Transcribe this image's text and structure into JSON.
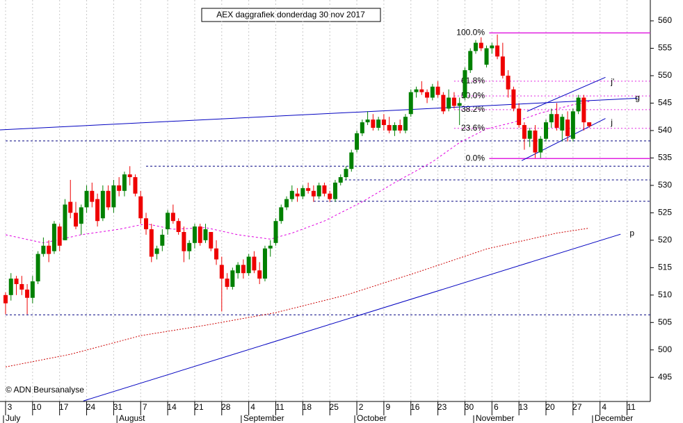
{
  "chart_data": {
    "type": "candlestick",
    "title": "AEX daggrafiek donderdag 30 nov 2017",
    "copyright": "© ADN Beursanalyse",
    "ylim": [
      490.6,
      563.8
    ],
    "yticks": [
      495,
      500,
      505,
      510,
      515,
      520,
      525,
      530,
      535,
      540,
      545,
      550,
      555,
      560
    ],
    "grid": true,
    "up_color": "#008000",
    "down_color": "#ee0000",
    "categories": [
      "3",
      null,
      null,
      null,
      null,
      "10",
      null,
      null,
      null,
      null,
      "17",
      null,
      null,
      null,
      null,
      "24",
      null,
      null,
      null,
      null,
      "31",
      null,
      null,
      null,
      null,
      "7",
      null,
      null,
      null,
      null,
      "14",
      null,
      null,
      null,
      null,
      "21",
      null,
      null,
      null,
      null,
      "28",
      null,
      null,
      null,
      null,
      "4",
      null,
      null,
      null,
      null,
      "11",
      null,
      null,
      null,
      null,
      "18",
      null,
      null,
      null,
      null,
      "25",
      null,
      null,
      null,
      null,
      "2",
      null,
      null,
      null,
      null,
      "9",
      null,
      null,
      null,
      null,
      "16",
      null,
      null,
      null,
      null,
      "23",
      null,
      null,
      null,
      null,
      "30",
      null,
      null,
      null,
      null,
      "6",
      null,
      null,
      null,
      null,
      "13",
      null,
      null,
      null,
      null,
      "20",
      null,
      null,
      null,
      null,
      "27",
      null,
      null,
      null,
      null,
      "4",
      null,
      null,
      null,
      null,
      "11",
      null,
      null,
      null
    ],
    "month_labels": [
      "July",
      null,
      null,
      null,
      null,
      null,
      null,
      null,
      null,
      null,
      null,
      null,
      null,
      null,
      null,
      null,
      null,
      null,
      null,
      null,
      null,
      "August",
      null,
      null,
      null,
      null,
      null,
      null,
      null,
      null,
      null,
      null,
      null,
      null,
      null,
      null,
      null,
      null,
      null,
      null,
      null,
      null,
      null,
      null,
      "September",
      null,
      null,
      null,
      null,
      null,
      null,
      null,
      null,
      null,
      null,
      null,
      null,
      null,
      null,
      null,
      null,
      null,
      null,
      null,
      null,
      "October",
      null,
      null,
      null,
      null,
      null,
      null,
      null,
      null,
      null,
      null,
      null,
      null,
      null,
      null,
      null,
      null,
      null,
      null,
      null,
      null,
      null,
      "November",
      null,
      null,
      null,
      null,
      null,
      null,
      null,
      null,
      null,
      null,
      null,
      null,
      null,
      null,
      null,
      null,
      null,
      null,
      null,
      null,
      null,
      "December",
      null,
      null,
      null,
      null,
      null,
      null,
      null,
      null,
      null
    ],
    "ohlc": [
      [
        510,
        510.5,
        506.5,
        508.5
      ],
      [
        510,
        514,
        509,
        513
      ],
      [
        513,
        513.5,
        510,
        512
      ],
      [
        512,
        513.5,
        510,
        511
      ],
      [
        511,
        512,
        506.5,
        509.5
      ],
      [
        509.5,
        513.5,
        508.5,
        512.5
      ],
      [
        512.5,
        518,
        512,
        517.5
      ],
      [
        517.5,
        520.5,
        517,
        519
      ],
      [
        519,
        520,
        516,
        517.5
      ],
      [
        518,
        523.5,
        517.5,
        523
      ],
      [
        522.5,
        523,
        518,
        519
      ],
      [
        520,
        527.5,
        520,
        526.5
      ],
      [
        527,
        531,
        524,
        525
      ],
      [
        525,
        527,
        522,
        522.5
      ],
      [
        523,
        526.5,
        521,
        526
      ],
      [
        526,
        530,
        525,
        529
      ],
      [
        529,
        530.5,
        526,
        527
      ],
      [
        527.5,
        528.5,
        522.5,
        523.5
      ],
      [
        524,
        530,
        523.5,
        529
      ],
      [
        529,
        530,
        525.5,
        526
      ],
      [
        526,
        531,
        525,
        530
      ],
      [
        530,
        531.5,
        528,
        529
      ],
      [
        529,
        532.5,
        528,
        532
      ],
      [
        532,
        533.5,
        530,
        531.5
      ],
      [
        531.5,
        532,
        528,
        528.5
      ],
      [
        528,
        529,
        523,
        524
      ],
      [
        524,
        525,
        521,
        522
      ],
      [
        522,
        523,
        516,
        517
      ],
      [
        517.5,
        519,
        516.5,
        518.5
      ],
      [
        519,
        522,
        518,
        521
      ],
      [
        522,
        525.5,
        521,
        525
      ],
      [
        525,
        526.5,
        523,
        523.5
      ],
      [
        523.5,
        524,
        521,
        521.5
      ],
      [
        521.5,
        522.5,
        516,
        518
      ],
      [
        518,
        520,
        516.5,
        519.5
      ],
      [
        519.5,
        523,
        518.5,
        522.5
      ],
      [
        522.5,
        523,
        519,
        519.5
      ],
      [
        520,
        523,
        519.5,
        522
      ],
      [
        521.5,
        521.5,
        518,
        518.5
      ],
      [
        518.5,
        520,
        515.5,
        516.5
      ],
      [
        515.5,
        517,
        507,
        513
      ],
      [
        513,
        514,
        511,
        511.5
      ],
      [
        511.5,
        515,
        511,
        514.5
      ],
      [
        514,
        516,
        513,
        515.5
      ],
      [
        515.5,
        516.5,
        513,
        514
      ],
      [
        514,
        517.5,
        513.5,
        517
      ],
      [
        517,
        518,
        514,
        514.5
      ],
      [
        514.5,
        516,
        512,
        513
      ],
      [
        513,
        519,
        512.5,
        518.5
      ],
      [
        518.5,
        520,
        517,
        519
      ],
      [
        519.5,
        524,
        519,
        523.5
      ],
      [
        523.5,
        526.5,
        523,
        526
      ],
      [
        526,
        528,
        525.5,
        527.5
      ],
      [
        527.5,
        530,
        527,
        529
      ],
      [
        528.5,
        529.5,
        527,
        528
      ],
      [
        528,
        530,
        527.5,
        529.5
      ],
      [
        529.5,
        530.5,
        528.5,
        529
      ],
      [
        529,
        530,
        527,
        528
      ],
      [
        528,
        530.5,
        527.5,
        530
      ],
      [
        530,
        530.5,
        528,
        528.5
      ],
      [
        528.5,
        529,
        527,
        527.5
      ],
      [
        527.5,
        531,
        527,
        530.5
      ],
      [
        530.5,
        532,
        530,
        531.5
      ],
      [
        531.5,
        533.5,
        531,
        533
      ],
      [
        533,
        536.5,
        532.5,
        536
      ],
      [
        536.5,
        540,
        536,
        539.5
      ],
      [
        539.5,
        542,
        539,
        541.5
      ],
      [
        541.5,
        543.5,
        541,
        542
      ],
      [
        542,
        543,
        540,
        540.5
      ],
      [
        540.5,
        542.5,
        540,
        542
      ],
      [
        542,
        543,
        540,
        541
      ],
      [
        541,
        542.5,
        539.5,
        540
      ],
      [
        540,
        541.5,
        539,
        541
      ],
      [
        541,
        542,
        539.5,
        540
      ],
      [
        540,
        543,
        539.5,
        542.5
      ],
      [
        543,
        547.5,
        542.5,
        547
      ],
      [
        547,
        548,
        546,
        547.5
      ],
      [
        547.5,
        549,
        546.5,
        547
      ],
      [
        547,
        547.5,
        545,
        546
      ],
      [
        546,
        548.5,
        545.5,
        548
      ],
      [
        548,
        549,
        546,
        546.5
      ],
      [
        546.5,
        547,
        543,
        543.5
      ],
      [
        544,
        547.5,
        543.5,
        546
      ],
      [
        546,
        547,
        544,
        544.5
      ],
      [
        544.5,
        546,
        541,
        545
      ],
      [
        546,
        551.5,
        545.5,
        551
      ],
      [
        551,
        555,
        550.5,
        554.5
      ],
      [
        554.5,
        556.5,
        554,
        556
      ],
      [
        556,
        557,
        554.5,
        555
      ],
      [
        552,
        555.5,
        551.5,
        555
      ],
      [
        555,
        556,
        554,
        555.5
      ],
      [
        555.5,
        557.5,
        553,
        553.5
      ],
      [
        553.5,
        556,
        549.5,
        550
      ],
      [
        550,
        551,
        546,
        547.5
      ],
      [
        547.5,
        548,
        543.5,
        544
      ],
      [
        544,
        545,
        540.5,
        541
      ],
      [
        541,
        541.5,
        536.5,
        538.5
      ],
      [
        538.5,
        540.5,
        537,
        540
      ],
      [
        540,
        541,
        535,
        536
      ],
      [
        536,
        539,
        535,
        538.5
      ],
      [
        538.5,
        542,
        538,
        541.5
      ],
      [
        541.5,
        544,
        540.5,
        543
      ],
      [
        543,
        545,
        540,
        540.5
      ],
      [
        540,
        543,
        538,
        542.5
      ],
      [
        542,
        543.5,
        538,
        539
      ],
      [
        538.5,
        544,
        538,
        543.5
      ],
      [
        543.5,
        546.5,
        543,
        546
      ],
      [
        546,
        546.5,
        540,
        541.5
      ],
      [
        541.5,
        541.5,
        540.5,
        540.8
      ],
      null,
      null,
      null,
      null,
      null,
      null,
      null,
      null,
      null,
      null
    ],
    "moving_averages": [
      {
        "color": "#e000e0",
        "dash": "3,3",
        "points": [
          [
            0,
            521
          ],
          [
            7,
            519.5
          ],
          [
            14,
            521
          ],
          [
            21,
            522
          ],
          [
            26,
            523
          ],
          [
            31,
            522
          ],
          [
            37,
            522.3
          ],
          [
            43,
            521
          ],
          [
            49,
            520.2
          ],
          [
            53,
            521.3
          ],
          [
            59,
            523.5
          ],
          [
            66,
            527
          ],
          [
            72,
            530.5
          ],
          [
            79,
            534.3
          ],
          [
            84,
            537.8
          ],
          [
            89,
            540.3
          ],
          [
            94,
            541.5
          ],
          [
            99,
            543.2
          ],
          [
            105,
            544.7
          ],
          [
            108,
            545.3
          ]
        ]
      },
      {
        "color": "#cc0000",
        "dash": "2,2",
        "points": [
          [
            0,
            496.9
          ],
          [
            12,
            499.2
          ],
          [
            25,
            502.6
          ],
          [
            37,
            504.5
          ],
          [
            50,
            506.8
          ],
          [
            63,
            510
          ],
          [
            76,
            514.1
          ],
          [
            89,
            518.4
          ],
          [
            102,
            521.3
          ],
          [
            108,
            522.2
          ]
        ]
      }
    ],
    "support_lines": [
      {
        "value": 506.4,
        "from": 0
      },
      {
        "value": 527.1,
        "from": 57
      },
      {
        "value": 531,
        "from": 62
      },
      {
        "value": 533.5,
        "from": 26
      },
      {
        "value": 538.1,
        "from": 0
      }
    ],
    "fib_levels": [
      {
        "label": "100.0%",
        "value": 557.8,
        "solid": true
      },
      {
        "label": "61.8%",
        "value": 549,
        "solid": false
      },
      {
        "label": "50.0%",
        "value": 546.3,
        "solid": false
      },
      {
        "label": "38.2%",
        "value": 543.8,
        "solid": false
      },
      {
        "label": "23.6%",
        "value": 540.4,
        "solid": false
      },
      {
        "label": "0.0%",
        "value": 534.9,
        "solid": true
      }
    ],
    "trend_lines": [
      {
        "label": "g",
        "points": [
          [
            -1.5,
            540.1
          ],
          [
            117,
            545.9
          ]
        ],
        "label_at": [
          116.5,
          545.9
        ]
      },
      {
        "label": "j",
        "points": [
          [
            95.5,
            534.5
          ],
          [
            111,
            542.2
          ]
        ],
        "label_at": [
          112,
          541.4
        ]
      },
      {
        "label": "j'",
        "points": [
          [
            96.5,
            543.5
          ],
          [
            111,
            549.7
          ]
        ],
        "label_at": [
          112,
          548.8
        ]
      },
      {
        "label": "p",
        "points": [
          [
            14.4,
            490.7
          ],
          [
            113.8,
            521.1
          ]
        ],
        "label_at": [
          115.5,
          521.2
        ]
      }
    ]
  }
}
